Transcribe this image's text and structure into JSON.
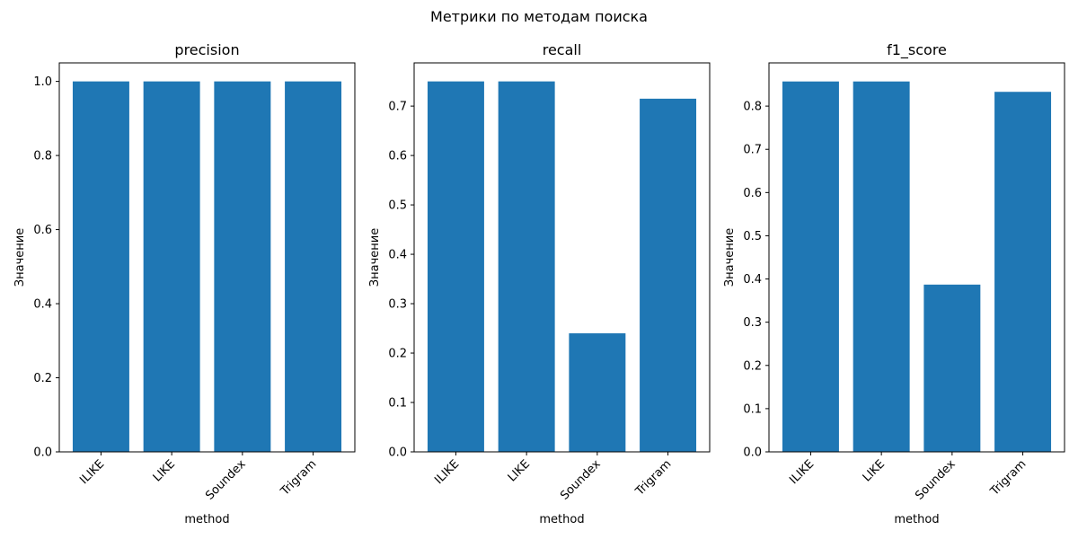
{
  "figure": {
    "title": "Метрики по методам поиска"
  },
  "chart_data": [
    {
      "type": "bar",
      "title": "precision",
      "xlabel": "method",
      "ylabel": "Значение",
      "categories": [
        "ILIKE",
        "LIKE",
        "Soundex",
        "Trigram"
      ],
      "values": [
        1.0,
        1.0,
        1.0,
        1.0
      ],
      "ylim": [
        0,
        1.05
      ],
      "yticks": [
        0.0,
        0.2,
        0.4,
        0.6,
        0.8,
        1.0
      ],
      "ytick_labels": [
        "0.0",
        "0.2",
        "0.4",
        "0.6",
        "0.8",
        "1.0"
      ],
      "color": "#1f77b4",
      "grid": false
    },
    {
      "type": "bar",
      "title": "recall",
      "xlabel": "method",
      "ylabel": "Значение",
      "categories": [
        "ILIKE",
        "LIKE",
        "Soundex",
        "Trigram"
      ],
      "values": [
        0.75,
        0.75,
        0.24,
        0.715
      ],
      "ylim": [
        0,
        0.7875
      ],
      "yticks": [
        0.0,
        0.1,
        0.2,
        0.3,
        0.4,
        0.5,
        0.6,
        0.7
      ],
      "ytick_labels": [
        "0.0",
        "0.1",
        "0.2",
        "0.3",
        "0.4",
        "0.5",
        "0.6",
        "0.7"
      ],
      "color": "#1f77b4",
      "grid": false
    },
    {
      "type": "bar",
      "title": "f1_score",
      "xlabel": "method",
      "ylabel": "Значение",
      "categories": [
        "ILIKE",
        "LIKE",
        "Soundex",
        "Trigram"
      ],
      "values": [
        0.857,
        0.857,
        0.387,
        0.833
      ],
      "ylim": [
        0,
        0.9
      ],
      "yticks": [
        0.0,
        0.1,
        0.2,
        0.3,
        0.4,
        0.5,
        0.6,
        0.7,
        0.8
      ],
      "ytick_labels": [
        "0.0",
        "0.1",
        "0.2",
        "0.3",
        "0.4",
        "0.5",
        "0.6",
        "0.7",
        "0.8"
      ],
      "color": "#1f77b4",
      "grid": false
    }
  ]
}
